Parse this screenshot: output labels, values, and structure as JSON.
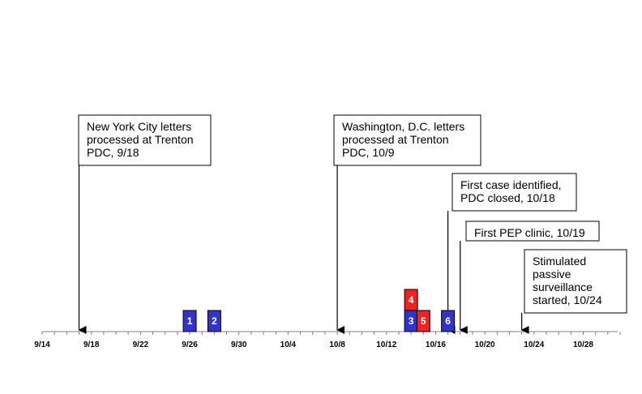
{
  "chart_data": {
    "type": "timeline",
    "title": "",
    "xlabel": "",
    "ylabel": "",
    "x_axis": {
      "start_day": "9/14",
      "end_day": "10/31",
      "tick_labels": [
        "9/14",
        "9/18",
        "9/22",
        "9/26",
        "9/30",
        "10/4",
        "10/8",
        "10/12",
        "10/16",
        "10/20",
        "10/24",
        "10/28"
      ],
      "minor_tick_interval_days": 1
    },
    "cases": [
      {
        "label": "1",
        "date": "9/26",
        "stack": 0,
        "color": "#3333cc"
      },
      {
        "label": "2",
        "date": "9/28",
        "stack": 0,
        "color": "#3333cc"
      },
      {
        "label": "3",
        "date": "10/14",
        "stack": 0,
        "color": "#3333cc"
      },
      {
        "label": "4",
        "date": "10/14",
        "stack": 1,
        "color": "#ee2222"
      },
      {
        "label": "5",
        "date": "10/15",
        "stack": 0,
        "color": "#ee2222"
      },
      {
        "label": "6",
        "date": "10/17",
        "stack": 0,
        "color": "#3333cc"
      }
    ],
    "events": [
      {
        "date": "9/17",
        "lines": [
          "New York City letters",
          "processed at Trenton",
          "PDC, 9/18"
        ]
      },
      {
        "date": "10/8",
        "lines": [
          "Washington, D.C. letters",
          "processed at Trenton",
          "PDC, 10/9"
        ]
      },
      {
        "date": "10/17",
        "lines": [
          "First case identified,",
          "PDC closed, 10/18"
        ]
      },
      {
        "date": "10/18",
        "lines": [
          "First PEP clinic, 10/19"
        ]
      },
      {
        "date": "10/23",
        "lines": [
          "Stimulated",
          "passive",
          "surveillance",
          "started, 10/24"
        ]
      }
    ],
    "colors": {
      "blue": "#3333cc",
      "red": "#ee2222"
    }
  }
}
